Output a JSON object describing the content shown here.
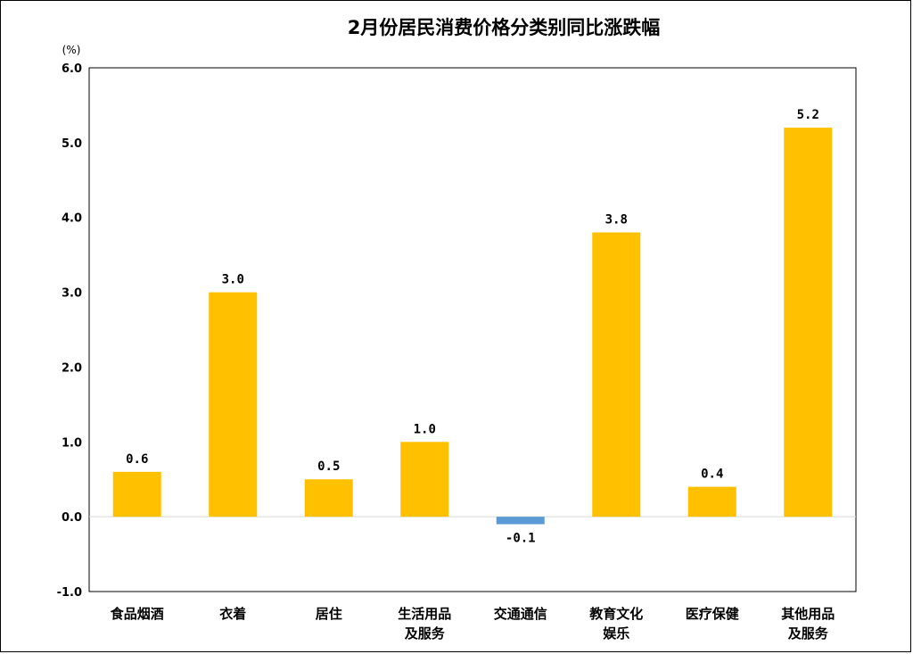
{
  "chart_data": {
    "type": "bar",
    "title": "2月份居民消费价格分类别同比涨跌幅",
    "ylabel": "(%)",
    "ylim": [
      -1.0,
      6.0
    ],
    "yticks": [
      "6.0",
      "5.0",
      "4.0",
      "3.0",
      "2.0",
      "1.0",
      "0.0",
      "-1.0"
    ],
    "ytick_values": [
      6,
      5,
      4,
      3,
      2,
      1,
      0,
      -1
    ],
    "grid": false,
    "categories": [
      [
        "食品烟酒"
      ],
      [
        "衣着"
      ],
      [
        "居住"
      ],
      [
        "生活用品",
        "及服务"
      ],
      [
        "交通通信"
      ],
      [
        "教育文化",
        "娱乐"
      ],
      [
        "医疗保健"
      ],
      [
        "其他用品",
        "及服务"
      ]
    ],
    "values": [
      0.6,
      3.0,
      0.5,
      1.0,
      -0.1,
      3.8,
      0.4,
      5.2
    ],
    "value_labels": [
      "0.6",
      "3.0",
      "0.5",
      "1.0",
      "-0.1",
      "3.8",
      "0.4",
      "5.2"
    ],
    "colors": {
      "positive": "#FFC000",
      "negative": "#5B9BD5",
      "axis": "#000000",
      "zero_line": "#D9D9D9"
    }
  }
}
